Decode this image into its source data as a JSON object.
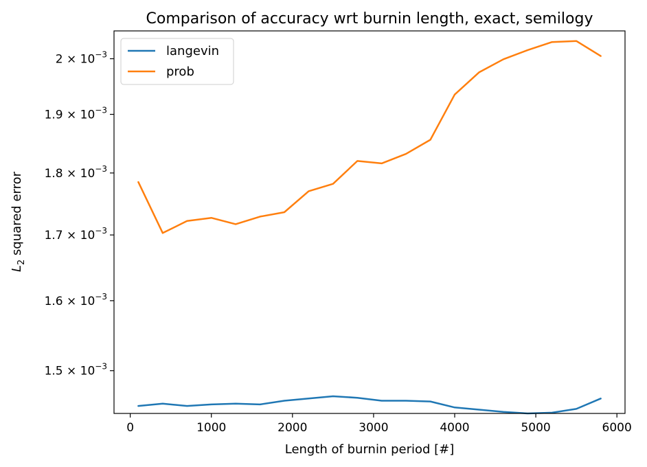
{
  "chart_data": {
    "type": "line",
    "title": "Comparison of accuracy wrt burnin length, exact, semilogy",
    "xlabel": "Length of burnin period [#]",
    "ylabel_main": "L",
    "ylabel_sub": "2",
    "ylabel_rest": " squared error",
    "yscale": "log",
    "xlim": [
      -200,
      6100
    ],
    "ylim": [
      0.001442,
      0.002052
    ],
    "grid": false,
    "legend_position": "upper-left",
    "x_ticks": [
      0,
      1000,
      2000,
      3000,
      4000,
      5000,
      6000
    ],
    "y_ticks": [
      {
        "value": 0.0015,
        "mantissa": "1.5",
        "base": "10",
        "exponent": "−3"
      },
      {
        "value": 0.0016,
        "mantissa": "1.6",
        "base": "10",
        "exponent": "−3"
      },
      {
        "value": 0.0017,
        "mantissa": "1.7",
        "base": "10",
        "exponent": "−3"
      },
      {
        "value": 0.0018,
        "mantissa": "1.8",
        "base": "10",
        "exponent": "−3"
      },
      {
        "value": 0.0019,
        "mantissa": "1.9",
        "base": "10",
        "exponent": "−3"
      },
      {
        "value": 0.002,
        "mantissa": "2",
        "base": "10",
        "exponent": "−3"
      }
    ],
    "x": [
      100,
      400,
      700,
      1000,
      1300,
      1600,
      1900,
      2200,
      2500,
      2800,
      3100,
      3400,
      3700,
      4000,
      4300,
      4600,
      4900,
      5200,
      5500,
      5800
    ],
    "series": [
      {
        "name": "langevin",
        "color": "#1f77b4",
        "values": [
          0.001452,
          0.001455,
          0.001452,
          0.001454,
          0.001455,
          0.001454,
          0.001459,
          0.001462,
          0.001465,
          0.001463,
          0.001459,
          0.001459,
          0.001458,
          0.00145,
          0.001447,
          0.001444,
          0.001442,
          0.001443,
          0.001448,
          0.001462
        ]
      },
      {
        "name": "prob",
        "color": "#ff7f0e",
        "values": [
          0.001785,
          0.001703,
          0.001722,
          0.001727,
          0.001717,
          0.001729,
          0.001736,
          0.00177,
          0.001782,
          0.00182,
          0.001816,
          0.001832,
          0.001856,
          0.001935,
          0.001975,
          0.001999,
          0.002016,
          0.002031,
          0.002033,
          0.002005
        ]
      }
    ]
  }
}
